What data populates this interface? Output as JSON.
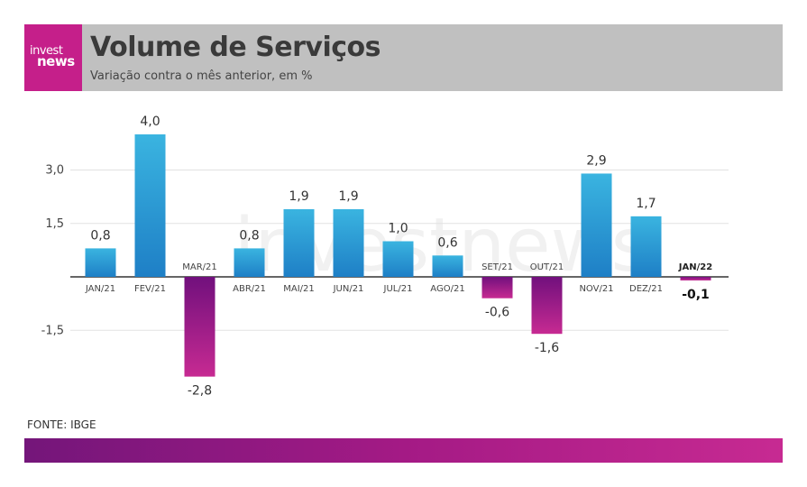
{
  "header": {
    "logo_line1": "invest",
    "logo_line2": "news",
    "title": "Volume de Serviços",
    "subtitle": "Variação contra o mês anterior, em %"
  },
  "source": "FONTE: IBGE",
  "watermark": "investnews",
  "colors": {
    "positive_top": "#3ab4e0",
    "positive_bottom": "#1e7fc6",
    "negative_top": "#71107d",
    "negative_bottom": "#c72a92",
    "brand": "#c51f8a"
  },
  "chart_data": {
    "type": "bar",
    "categories": [
      "JAN/21",
      "FEV/21",
      "MAR/21",
      "ABR/21",
      "MAI/21",
      "JUN/21",
      "JUL/21",
      "AGO/21",
      "SET/21",
      "OUT/21",
      "NOV/21",
      "DEZ/21",
      "JAN/22"
    ],
    "values": [
      0.8,
      4.0,
      -2.8,
      0.8,
      1.9,
      1.9,
      1.0,
      0.6,
      -0.6,
      -1.6,
      2.9,
      1.7,
      -0.1
    ],
    "value_labels": [
      "0,8",
      "4,0",
      "-2,8",
      "0,8",
      "1,9",
      "1,9",
      "1,0",
      "0,6",
      "-0,6",
      "-1,6",
      "2,9",
      "1,7",
      "-0,1"
    ],
    "y_ticks": [
      3.0,
      1.5,
      -1.5
    ],
    "y_tick_labels": [
      "3,0",
      "1,5",
      "-1,5"
    ],
    "highlight_category": "JAN/22",
    "ylim": [
      -3.5,
      4.5
    ],
    "grid": true,
    "legend": "none"
  }
}
